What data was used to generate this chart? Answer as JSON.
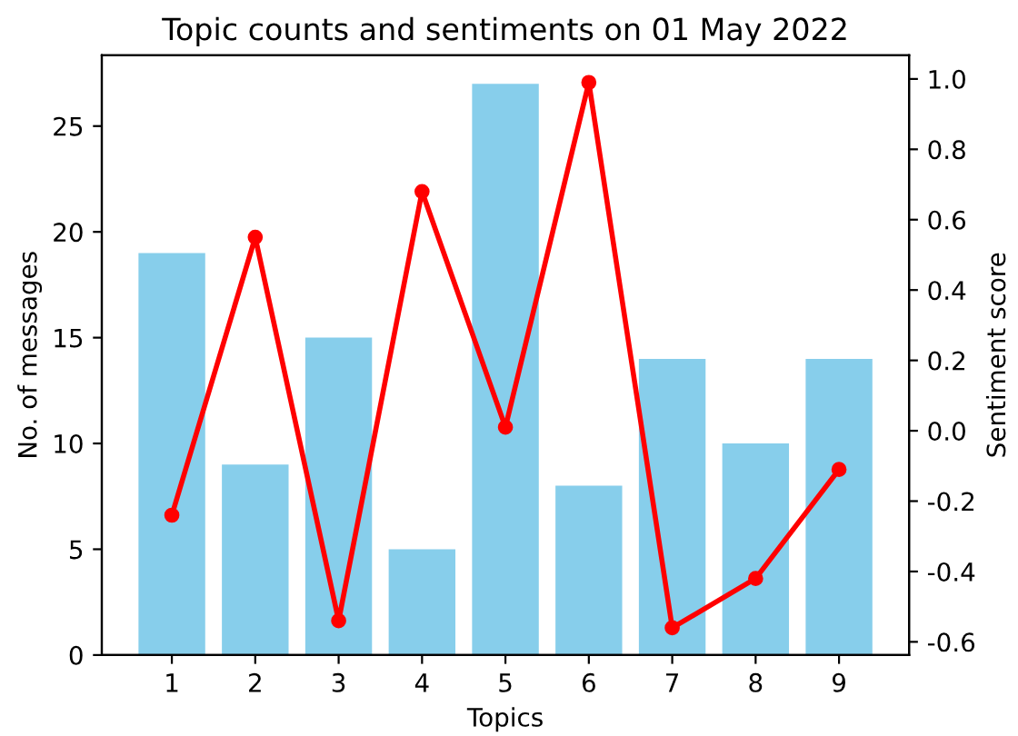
{
  "chart_data": {
    "type": "bar",
    "title": "Topic counts and sentiments on 01 May 2022",
    "xlabel": "Topics",
    "ylabel": "No. of messages",
    "y2label": "Sentiment score",
    "categories": [
      "1",
      "2",
      "3",
      "4",
      "5",
      "6",
      "7",
      "8",
      "9"
    ],
    "series": [
      {
        "color": "#87ceeb",
        "values": [
          19,
          9,
          15,
          5,
          27,
          8,
          14,
          10,
          14
        ]
      },
      {
        "type": "line",
        "axis": "y2",
        "color": "#ff0000",
        "marker": "circle",
        "values": [
          -0.24,
          0.55,
          -0.54,
          0.68,
          0.01,
          0.99,
          -0.56,
          -0.42,
          -0.11
        ]
      }
    ],
    "ylim": [
      0,
      28.35
    ],
    "yticks": [
      0,
      5,
      10,
      15,
      20,
      25
    ],
    "y2lim": [
      -0.6375,
      1.0675
    ],
    "y2ticks": [
      -0.6,
      -0.4,
      -0.2,
      {
        "value": 0,
        "label": "0.0"
      },
      0.2,
      0.4,
      0.6,
      0.8,
      {
        "value": 1,
        "label": "1.0"
      }
    ],
    "grid": false
  }
}
